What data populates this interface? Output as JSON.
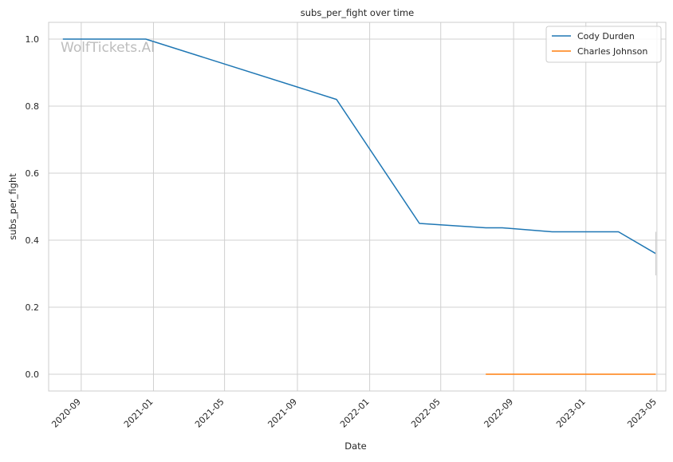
{
  "chart_data": {
    "type": "line",
    "title": "subs_per_fight over time",
    "xlabel": "Date",
    "ylabel": "subs_per_fight",
    "watermark": "WolfTickets.AI",
    "x_ticks": [
      "2020-09",
      "2021-01",
      "2021-05",
      "2021-09",
      "2022-01",
      "2022-05",
      "2022-09",
      "2023-01",
      "2023-05"
    ],
    "y_ticks": [
      "0.0",
      "0.2",
      "0.4",
      "0.6",
      "0.8",
      "1.0"
    ],
    "xlim": [
      "2020-07-08",
      "2023-05-16"
    ],
    "ylim": [
      -0.05,
      1.05
    ],
    "grid": true,
    "legend_position": "top-right",
    "series": [
      {
        "name": "Cody Durden",
        "color": "#1f77b4",
        "points": [
          [
            "2020-08-01",
            1.0
          ],
          [
            "2020-12-19",
            1.0
          ],
          [
            "2021-11-06",
            0.82
          ],
          [
            "2022-03-26",
            0.45
          ],
          [
            "2022-07-16",
            0.437
          ],
          [
            "2022-08-13",
            0.437
          ],
          [
            "2022-11-05",
            0.425
          ],
          [
            "2023-02-25",
            0.425
          ],
          [
            "2023-04-29",
            0.36
          ]
        ]
      },
      {
        "name": "Charles Johnson",
        "color": "#ff7f0e",
        "points": [
          [
            "2022-07-16",
            0.0
          ],
          [
            "2023-04-29",
            0.0
          ]
        ]
      }
    ],
    "annotations": [
      {
        "type": "error-bar",
        "x": "2023-04-29",
        "y_low": 0.295,
        "y_high": 0.425,
        "color": "#c8c8c8"
      }
    ]
  }
}
